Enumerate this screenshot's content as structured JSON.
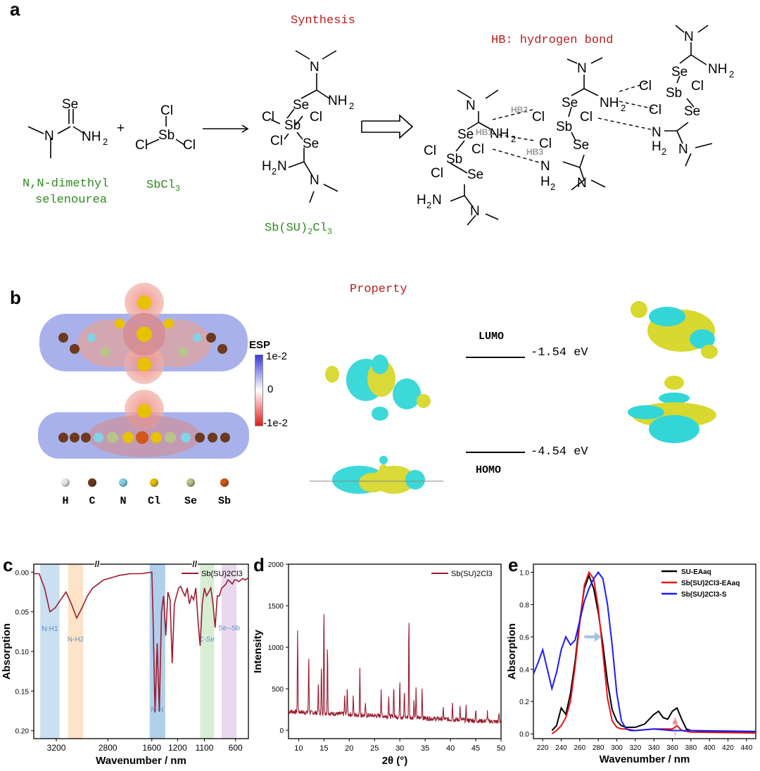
{
  "panel_labels": {
    "a": "a",
    "b": "b",
    "c": "c",
    "d": "d",
    "e": "e"
  },
  "panel_a": {
    "section_title": "Synthesis",
    "hb_title": "HB: hydrogen bond",
    "reactant1_name_line1": "N,N-dimethyl",
    "reactant1_name_line2": "selenourea",
    "reactant2_name": "SbCl3",
    "product_name": "Sb(SU)2Cl3",
    "plus": "+",
    "hb_labels": [
      "HB1",
      "HB2",
      "HB3"
    ]
  },
  "panel_b": {
    "section_title": "Property",
    "esp_title": "ESP",
    "esp_ticks": [
      "1e-2",
      "0",
      "-1e-2"
    ],
    "lumo_label": "LUMO",
    "lumo_energy": "-1.54 eV",
    "homo_label": "HOMO",
    "homo_energy": "-4.54 eV",
    "atom_legend": [
      {
        "symbol": "H",
        "color": "#e8e8e8"
      },
      {
        "symbol": "C",
        "color": "#6b3a1f"
      },
      {
        "symbol": "N",
        "color": "#7fd4e6"
      },
      {
        "symbol": "Cl",
        "color": "#e6c200"
      },
      {
        "symbol": "Se",
        "color": "#b8c48a"
      },
      {
        "symbol": "Sb",
        "color": "#d2571a"
      }
    ]
  },
  "chart_data": [
    {
      "panel": "c",
      "type": "line",
      "xlabel": "Wavenumber / nm",
      "ylabel": "Absorption",
      "legend": [
        "Sb(SU)2Cl3"
      ],
      "xticks": [
        "3200",
        "2800",
        "1600",
        "1200",
        "1100",
        "600"
      ],
      "yticks": [
        "0.00",
        "0.05",
        "0.10",
        "0.15",
        "0.20"
      ],
      "ylim": [
        -0.01,
        0.21
      ],
      "band_labels": [
        "N-H1",
        "N-H2",
        "N-H",
        "C-Se",
        "Se--Sb"
      ],
      "series": [
        {
          "name": "Sb(SU)2Cl3",
          "color": "#9b1b30",
          "x": [
            0,
            10,
            20,
            30,
            40,
            50,
            60,
            70,
            80,
            90,
            100,
            110,
            120,
            130,
            140,
            150,
            160,
            170,
            180,
            190,
            200,
            210,
            220,
            222,
            226,
            230,
            234,
            238,
            242,
            246,
            250,
            254,
            258,
            262,
            266,
            270,
            274,
            278,
            282,
            286,
            290,
            294,
            298,
            302,
            306,
            310,
            314,
            318,
            322,
            326,
            330,
            334,
            338,
            342,
            346,
            350,
            354,
            358,
            362,
            366,
            370,
            374,
            378,
            382,
            386,
            390,
            394,
            398,
            400
          ],
          "y": [
            0.002,
            0.002,
            0.02,
            0.05,
            0.045,
            0.035,
            0.025,
            0.04,
            0.058,
            0.045,
            0.03,
            0.02,
            0.015,
            0.01,
            0.008,
            0.006,
            0.004,
            0.003,
            0.002,
            0.002,
            0.002,
            0.001,
            0.0,
            0.05,
            0.177,
            0.09,
            0.176,
            0.05,
            0.03,
            0.08,
            0.025,
            0.035,
            0.115,
            0.04,
            0.03,
            0.02,
            0.018,
            0.025,
            0.03,
            0.02,
            0.04,
            0.03,
            0.035,
            0.02,
            0.06,
            0.093,
            0.04,
            0.02,
            0.03,
            0.025,
            0.02,
            0.04,
            0.07,
            0.03,
            0.03,
            0.02,
            0.018,
            0.015,
            0.01,
            0.012,
            0.015,
            0.01,
            0.01,
            0.012,
            0.01,
            0.008,
            0.01,
            0.008,
            0.008
          ]
        }
      ]
    },
    {
      "panel": "d",
      "type": "line",
      "xlabel": "2θ (°)",
      "ylabel": "Intensity",
      "legend": [
        "Sb(SU)2Cl3"
      ],
      "xlim": [
        8,
        50
      ],
      "ylim": [
        -100,
        2000
      ],
      "xticks": [
        10,
        15,
        20,
        25,
        30,
        35,
        40,
        45,
        50
      ],
      "yticks": [
        0,
        500,
        1000,
        1500,
        2000
      ],
      "peaks": [
        {
          "x": 9.8,
          "y": 1170
        },
        {
          "x": 12.0,
          "y": 890
        },
        {
          "x": 13.9,
          "y": 560
        },
        {
          "x": 14.5,
          "y": 760
        },
        {
          "x": 15.0,
          "y": 1450
        },
        {
          "x": 15.7,
          "y": 1000
        },
        {
          "x": 19.1,
          "y": 430
        },
        {
          "x": 19.6,
          "y": 530
        },
        {
          "x": 20.8,
          "y": 420
        },
        {
          "x": 22.1,
          "y": 790
        },
        {
          "x": 23.2,
          "y": 330
        },
        {
          "x": 26.3,
          "y": 530
        },
        {
          "x": 27.8,
          "y": 460
        },
        {
          "x": 28.8,
          "y": 580
        },
        {
          "x": 30.0,
          "y": 650
        },
        {
          "x": 30.9,
          "y": 520
        },
        {
          "x": 31.8,
          "y": 1400
        },
        {
          "x": 32.8,
          "y": 420
        },
        {
          "x": 33.2,
          "y": 540
        },
        {
          "x": 34.4,
          "y": 560
        },
        {
          "x": 38.6,
          "y": 330
        },
        {
          "x": 40.4,
          "y": 410
        },
        {
          "x": 41.9,
          "y": 360
        },
        {
          "x": 43.1,
          "y": 360
        },
        {
          "x": 45.0,
          "y": 330
        },
        {
          "x": 47.3,
          "y": 320
        },
        {
          "x": 49.6,
          "y": 300
        }
      ],
      "series": [
        {
          "name": "Sb(SU)2Cl3",
          "color": "#9b1b30"
        }
      ]
    },
    {
      "panel": "e",
      "type": "line",
      "xlabel": "Wavenumber / nm",
      "ylabel": "Absorption",
      "xlim": [
        210,
        450
      ],
      "ylim": [
        -0.03,
        1.05
      ],
      "xticks": [
        220,
        240,
        260,
        280,
        300,
        320,
        340,
        360,
        380,
        400,
        420,
        440
      ],
      "yticks": [
        0.0,
        0.2,
        0.4,
        0.6,
        0.8,
        1.0
      ],
      "series": [
        {
          "name": "SU-EAaq",
          "color": "#000000",
          "x": [
            230,
            235,
            240,
            245,
            250,
            255,
            260,
            265,
            270,
            275,
            280,
            285,
            290,
            295,
            300,
            305,
            310,
            320,
            330,
            340,
            345,
            350,
            355,
            360,
            365,
            370,
            375,
            380,
            400,
            450
          ],
          "y": [
            0.02,
            0.05,
            0.16,
            0.12,
            0.25,
            0.45,
            0.7,
            0.9,
            0.98,
            0.9,
            0.75,
            0.55,
            0.32,
            0.15,
            0.08,
            0.05,
            0.04,
            0.04,
            0.06,
            0.12,
            0.14,
            0.1,
            0.09,
            0.14,
            0.16,
            0.09,
            0.03,
            0.02,
            0.015,
            0.01
          ]
        },
        {
          "name": "Sb(SU)2Cl3-EAaq",
          "color": "#e8141c",
          "x": [
            230,
            235,
            240,
            245,
            250,
            255,
            260,
            265,
            270,
            275,
            280,
            285,
            290,
            295,
            300,
            305,
            310,
            320,
            340,
            360,
            365,
            370,
            380,
            450
          ],
          "y": [
            0.0,
            0.02,
            0.05,
            0.1,
            0.2,
            0.42,
            0.68,
            0.92,
            1.0,
            0.96,
            0.78,
            0.5,
            0.22,
            0.08,
            0.04,
            0.03,
            0.03,
            0.02,
            0.03,
            0.03,
            0.05,
            0.02,
            0.01,
            0.005
          ]
        },
        {
          "name": "Sb(SU)2Cl3-S",
          "color": "#1a1aff",
          "x": [
            210,
            215,
            220,
            225,
            230,
            235,
            240,
            245,
            250,
            255,
            260,
            265,
            270,
            275,
            280,
            285,
            290,
            295,
            300,
            305,
            310,
            315,
            320,
            340,
            360,
            380,
            450
          ],
          "y": [
            0.37,
            0.44,
            0.52,
            0.4,
            0.28,
            0.38,
            0.52,
            0.6,
            0.55,
            0.58,
            0.7,
            0.82,
            0.9,
            0.96,
            1.0,
            0.96,
            0.8,
            0.55,
            0.25,
            0.08,
            0.03,
            0.02,
            0.02,
            0.03,
            0.02,
            0.02,
            0.015
          ]
        }
      ]
    }
  ]
}
